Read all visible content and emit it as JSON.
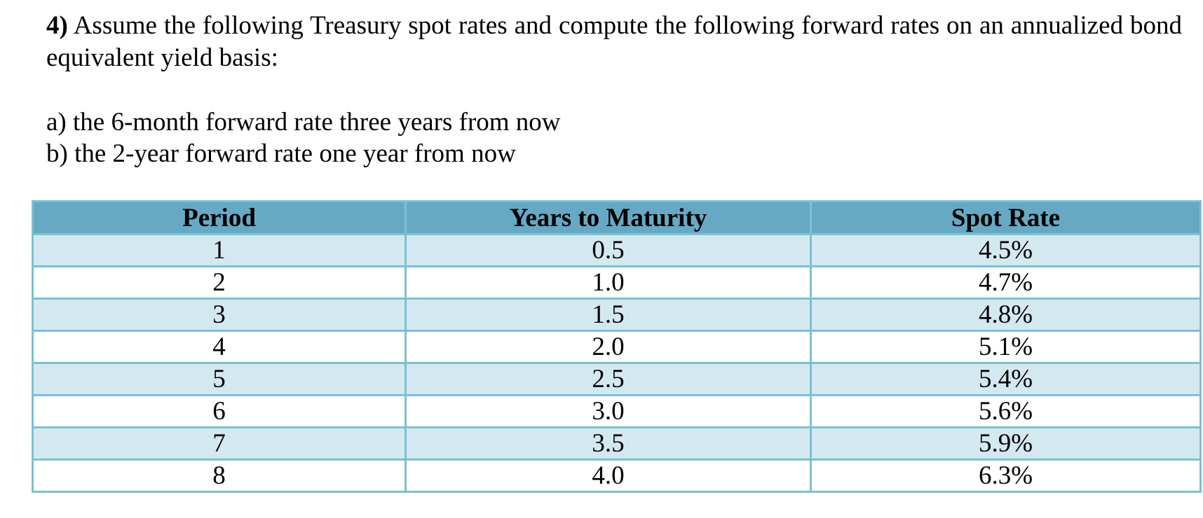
{
  "problem": {
    "number": "4)",
    "text": " Assume the following Treasury spot rates and compute the following forward rates on an annualized bond equivalent yield basis:"
  },
  "parts": [
    "a) the 6-month forward rate three years from now",
    "b) the 2-year forward rate one year from now"
  ],
  "table": {
    "headers": [
      "Period",
      "Years to Maturity",
      "Spot Rate"
    ],
    "rows": [
      [
        "1",
        "0.5",
        "4.5%"
      ],
      [
        "2",
        "1.0",
        "4.7%"
      ],
      [
        "3",
        "1.5",
        "4.8%"
      ],
      [
        "4",
        "2.0",
        "5.1%"
      ],
      [
        "5",
        "2.5",
        "5.4%"
      ],
      [
        "6",
        "3.0",
        "5.6%"
      ],
      [
        "7",
        "3.5",
        "5.9%"
      ],
      [
        "8",
        "4.0",
        "6.3%"
      ]
    ]
  },
  "colors": {
    "header_bg": "#67a9c4",
    "row_alt_bg": "#d4e8f0",
    "border": "#7fbfd0"
  }
}
